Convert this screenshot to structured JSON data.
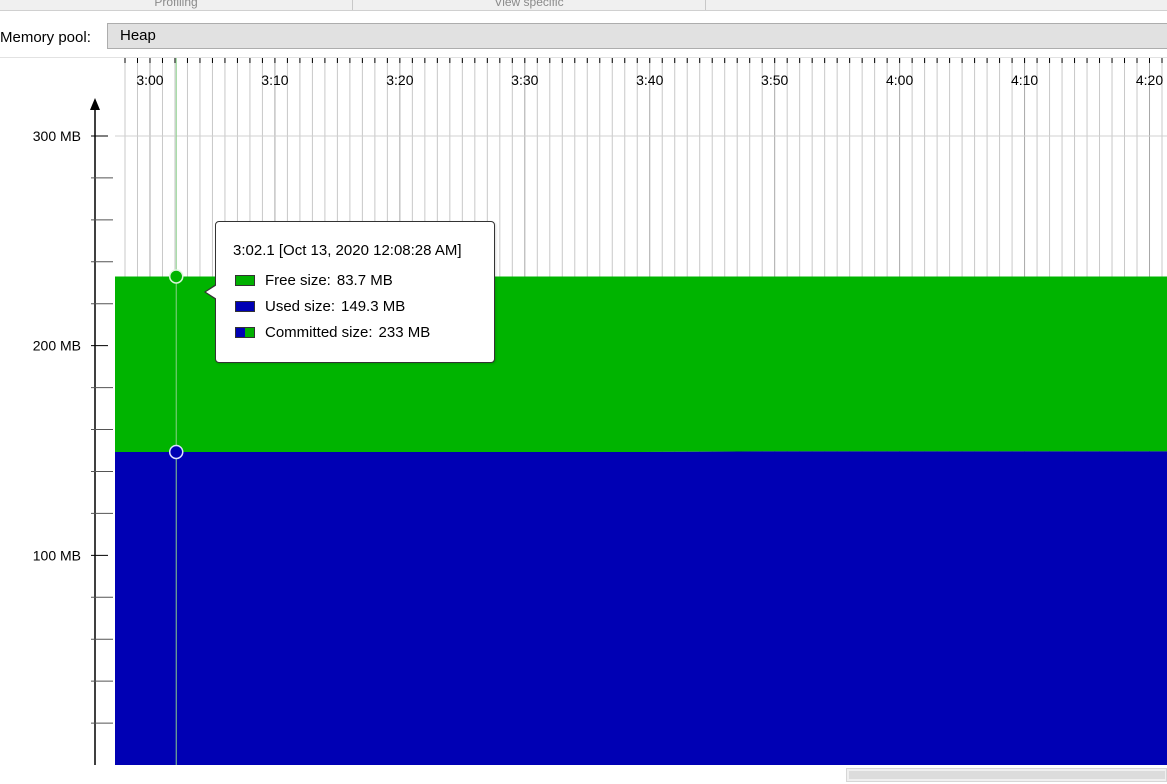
{
  "tabs": [
    "Profiling",
    "View specific"
  ],
  "memory_pool": {
    "label": "Memory pool:",
    "selected": "Heap"
  },
  "tooltip": {
    "title": "3:02.1 [Oct 13, 2020 12:08:28 AM]",
    "rows": [
      {
        "label": "Free size:",
        "value": "83.7 MB",
        "color": "#00b000"
      },
      {
        "label": "Used size:",
        "value": "149.3 MB",
        "color": "#0000b4"
      },
      {
        "label": "Committed size:",
        "value": "233 MB",
        "color": "mixed"
      }
    ]
  },
  "colors": {
    "free": "#00b400",
    "used": "#0000b4",
    "grid": "#c8c8c8"
  },
  "chart_data": {
    "type": "area",
    "x_unit": "minutes:seconds",
    "x_ticks": [
      "3:00",
      "3:10",
      "3:20",
      "3:30",
      "3:40",
      "3:50",
      "4:00",
      "4:10",
      "4:20"
    ],
    "x_range": [
      "2:57.2",
      "4:21.4"
    ],
    "y_ticks": [
      "100 MB",
      "200 MB",
      "300 MB"
    ],
    "y_range_mb": [
      0,
      300
    ],
    "series": [
      {
        "name": "Used size",
        "values_mb": [
          149.3,
          149.3,
          149.3,
          149.3,
          149.3,
          149.6,
          149.6,
          149.6,
          149.6
        ]
      },
      {
        "name": "Free size",
        "values_mb": [
          83.7,
          83.7,
          83.7,
          83.7,
          83.7,
          83.4,
          83.4,
          83.4,
          83.4
        ]
      },
      {
        "name": "Committed size",
        "values_mb": [
          233,
          233,
          233,
          233,
          233,
          233,
          233,
          233,
          233
        ]
      }
    ],
    "cursor_time": "3:02.1"
  }
}
